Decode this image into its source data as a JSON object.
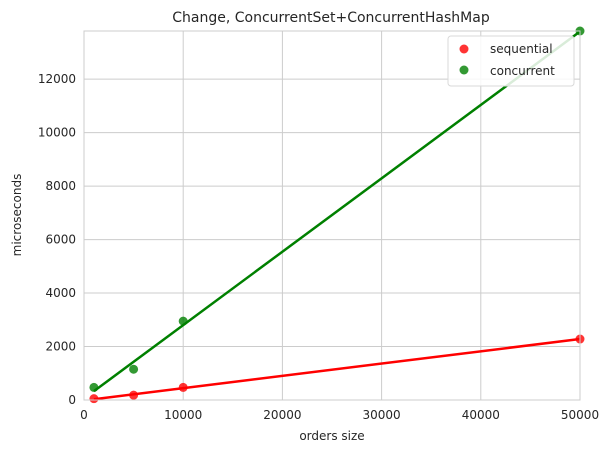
{
  "chart_data": {
    "type": "scatter",
    "title": "Change, ConcurrentSet+ConcurrentHashMap",
    "xlabel": "orders size",
    "ylabel": "microseconds",
    "xlim": [
      0,
      50000
    ],
    "ylim": [
      0,
      13800
    ],
    "xticks": [
      0,
      10000,
      20000,
      30000,
      40000,
      50000
    ],
    "yticks": [
      0,
      2000,
      4000,
      6000,
      8000,
      10000,
      12000
    ],
    "grid": true,
    "legend_position": "top-right",
    "series": [
      {
        "name": "sequential",
        "color": "#ff0000",
        "points": [
          {
            "x": 1000,
            "y": 50
          },
          {
            "x": 5000,
            "y": 180
          },
          {
            "x": 10000,
            "y": 470
          },
          {
            "x": 50000,
            "y": 2280
          }
        ],
        "fit_line": [
          {
            "x": 1000,
            "y": 30
          },
          {
            "x": 50000,
            "y": 2280
          }
        ]
      },
      {
        "name": "concurrent",
        "color": "#008000",
        "points": [
          {
            "x": 1000,
            "y": 470
          },
          {
            "x": 5000,
            "y": 1150
          },
          {
            "x": 10000,
            "y": 2950
          },
          {
            "x": 50000,
            "y": 13800
          }
        ],
        "fit_line": [
          {
            "x": 1000,
            "y": 330
          },
          {
            "x": 50000,
            "y": 13780
          }
        ]
      }
    ]
  }
}
